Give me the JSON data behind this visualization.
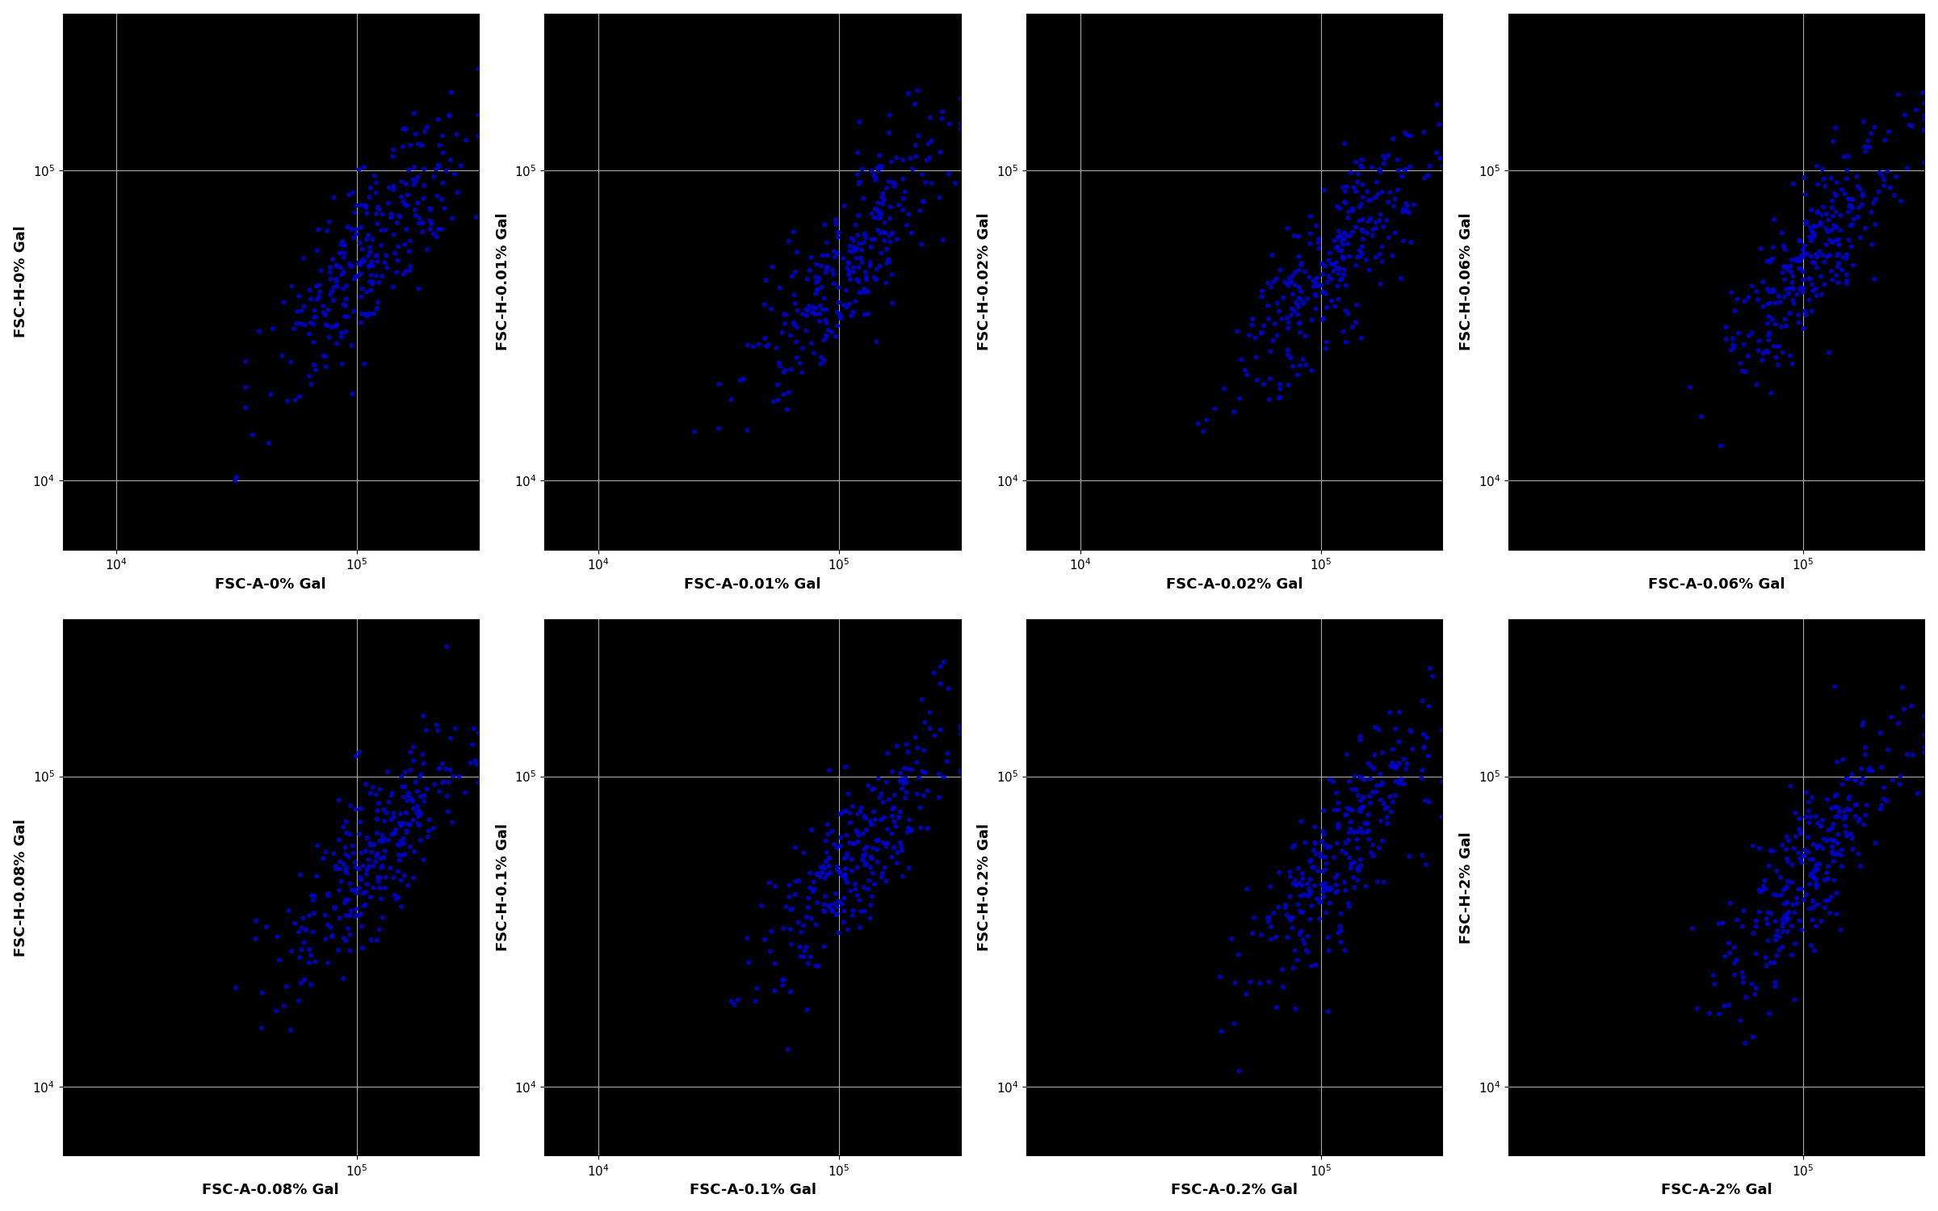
{
  "conditions": [
    "0%",
    "0.01%",
    "0.02%",
    "0.06%",
    "0.08%",
    "0.1%",
    "0.2%",
    "2%"
  ],
  "xlabels": [
    "FSC-A-0% Gal",
    "FSC-A-0.01% Gal",
    "FSC-A-0.02% Gal",
    "FSC-A-0.06% Gal",
    "FSC-A-0.08% Gal",
    "FSC-A-0.1% Gal",
    "FSC-A-0.2% Gal",
    "FSC-A-2% Gal"
  ],
  "ylabels": [
    "FSC-H-0% Gal",
    "FSC-H-0.01% Gal",
    "FSC-H-0.02% Gal",
    "FSC-H-0.06% Gal",
    "FSC-H-0.08% Gal",
    "FSC-H-0.1% Gal",
    "FSC-H-0.2% Gal",
    "FSC-H-2% Gal"
  ],
  "nrows": 2,
  "ncols": 4,
  "xmin": 6000,
  "xmax": 320000,
  "ymin": 6000,
  "ymax": 320000,
  "n_background": 9000,
  "n_blue": 280,
  "background_color": "#000000",
  "blue_color": "#0000cc",
  "fig_bg": "#ffffff",
  "grid_color": "#aaaaaa",
  "xlabel_fontsize": 13,
  "ylabel_fontsize": 13,
  "tick_fontsize": 11,
  "seed": 42
}
